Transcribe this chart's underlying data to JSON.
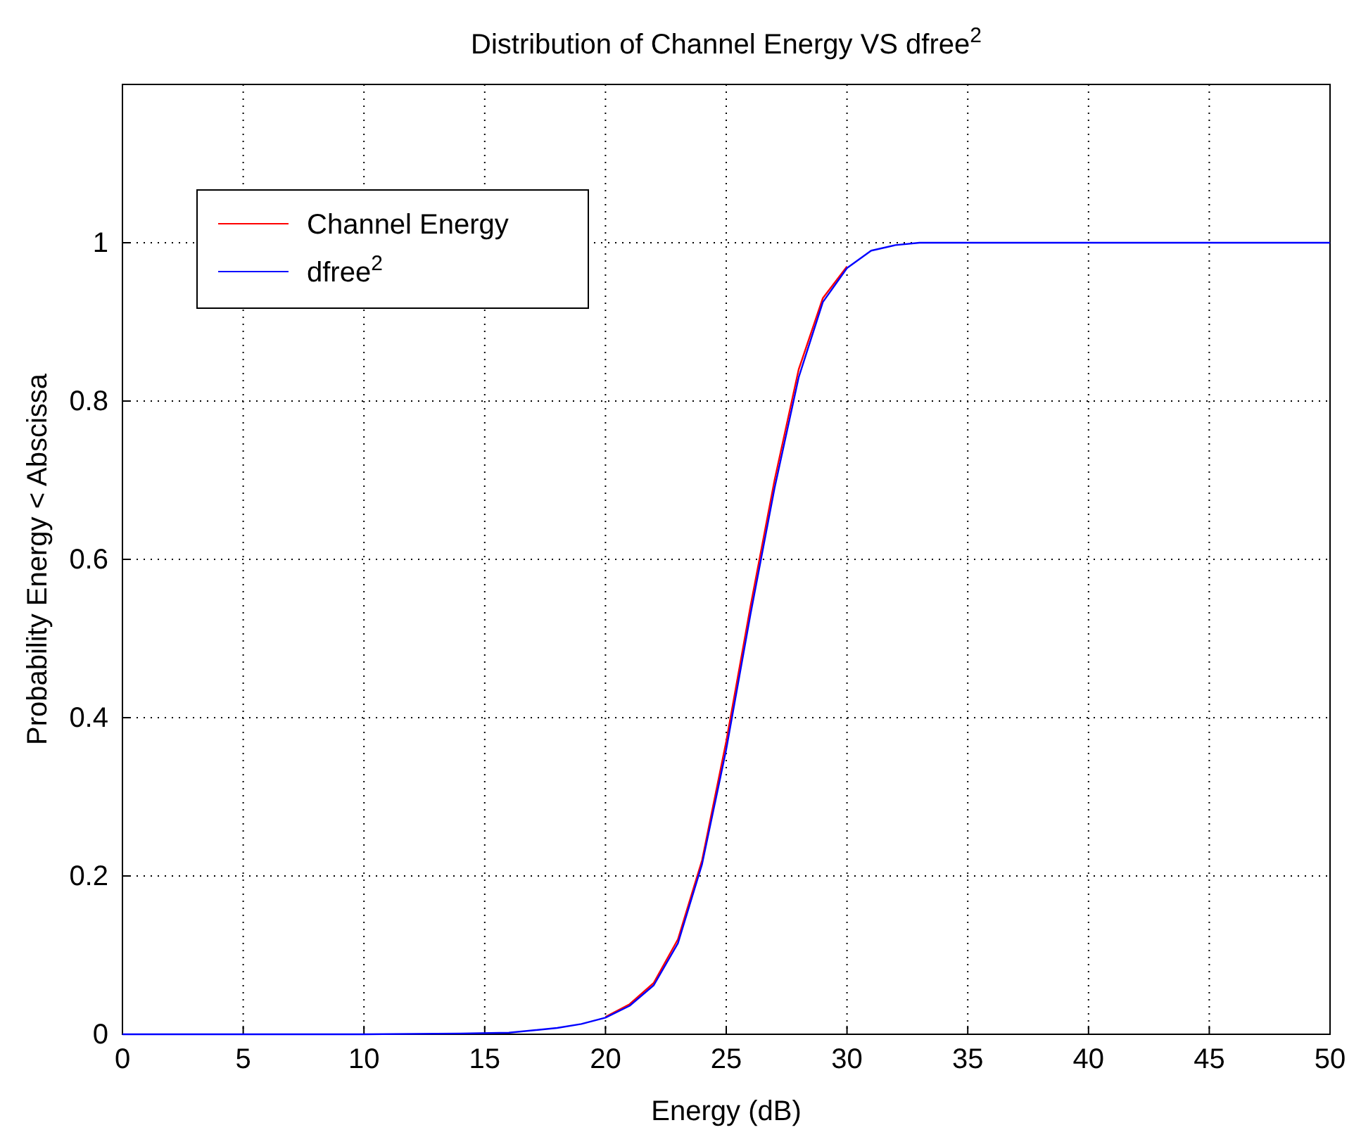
{
  "chart_data": {
    "type": "line",
    "title": "Distribution of Channel Energy VS dfree$^{2}$",
    "xlabel": "Energy (dB)",
    "ylabel": "Probability Energy < Abscissa",
    "x": [
      0,
      5,
      10,
      14,
      16,
      18,
      19,
      20,
      21,
      22,
      23,
      24,
      25,
      26,
      27,
      28,
      29,
      30,
      31,
      32,
      33,
      35,
      40,
      45,
      50
    ],
    "series": [
      {
        "name": "Channel Energy",
        "color": "#ff0000",
        "values": [
          null,
          null,
          null,
          null,
          null,
          null,
          null,
          0.022,
          0.038,
          0.065,
          0.12,
          0.22,
          0.37,
          0.54,
          0.7,
          0.84,
          0.93,
          0.97,
          null,
          null,
          null,
          null,
          null,
          null,
          null
        ]
      },
      {
        "name": "dfree$^{2}$",
        "color": "#0000ff",
        "values": [
          0,
          0,
          0,
          0.001,
          0.002,
          0.008,
          0.013,
          0.021,
          0.036,
          0.062,
          0.115,
          0.215,
          0.36,
          0.53,
          0.69,
          0.83,
          0.925,
          0.968,
          0.99,
          0.997,
          1,
          1,
          1,
          1,
          1
        ]
      }
    ],
    "xlim": [
      0,
      50
    ],
    "xticks": [
      0,
      5,
      10,
      15,
      20,
      25,
      30,
      35,
      40,
      45,
      50
    ],
    "ylim": [
      0,
      1.2
    ],
    "yticks": [
      0,
      0.2,
      0.4,
      0.6,
      0.8,
      1,
      {
        "value": 1.2,
        "label": null
      }
    ],
    "grid": true,
    "legend": "top left",
    "marker": "none",
    "line_style": "solid"
  }
}
